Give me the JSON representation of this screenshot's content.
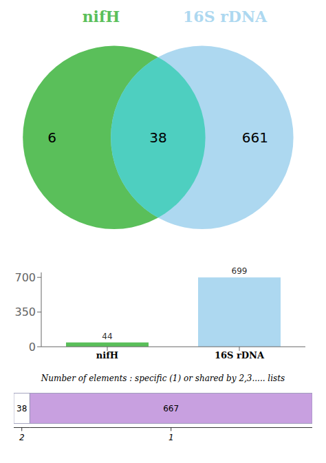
{
  "chart_data": [
    {
      "type": "venn",
      "categories": [
        "nifH",
        null,
        "16S rDNA"
      ],
      "values": [
        6,
        38,
        661
      ],
      "colors": [
        "#5abf5a",
        "#4ecfc0",
        "#add8f0"
      ],
      "data_labels": true
    },
    {
      "type": "bar",
      "categories": [
        "nifH",
        "16S rDNA"
      ],
      "values": [
        44,
        699
      ],
      "colors": [
        "#5abf5a",
        "#add8f0"
      ],
      "ylim": [
        0,
        750
      ],
      "yticks": [
        0,
        350,
        700
      ],
      "data_labels": true
    },
    {
      "type": "bar",
      "title": "Number of elements : specific (1) or shared by 2,3..... lists",
      "orientation": "horizontal",
      "stacked": true,
      "series": [
        {
          "name": "2",
          "color": "#ffffff",
          "values": [
            38
          ]
        },
        {
          "name": "1",
          "color": "#c8a0e0",
          "values": [
            667
          ]
        }
      ],
      "xlim": [
        0,
        705
      ],
      "tick_labels": false,
      "data_labels": true
    }
  ]
}
